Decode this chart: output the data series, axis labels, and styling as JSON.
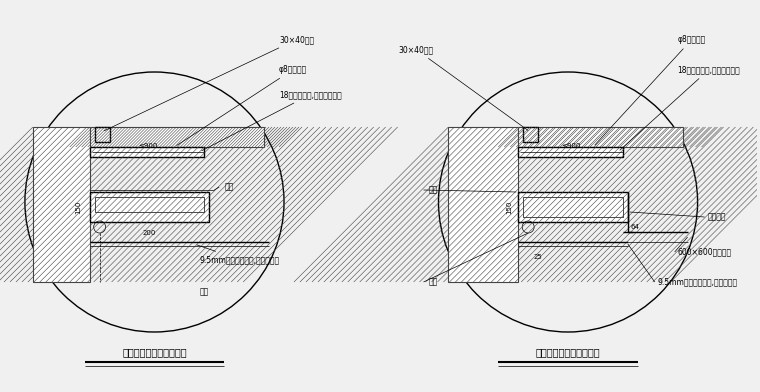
{
  "bg_color": "#f0f0f0",
  "line_color": "#000000",
  "hatch_color": "#555555",
  "title1": "石膏板吊顶窗帘盒剖面图",
  "title2": "矿棉板吊顶窗帘盒剖面图",
  "labels_left": [
    "30×40木方",
    "φ8镀锌吊杆",
    "18厚细木工板,防腐防火处理",
    "≤900",
    "滑道",
    "150",
    "200",
    "9.5mm厚石膏板吊顶,白色乳胶漆",
    "窗帘"
  ],
  "labels_right": [
    "30×40木方",
    "φ8镀锌吊杆",
    "18厚细木工板,防腐防火处理",
    "≤900",
    "滑道",
    "轻钢龙骨",
    "600×600矿棉音板",
    "9.5mm厚石膏板吊顶,白色乳胶漆",
    "窗帘",
    "150",
    "64",
    "25"
  ]
}
